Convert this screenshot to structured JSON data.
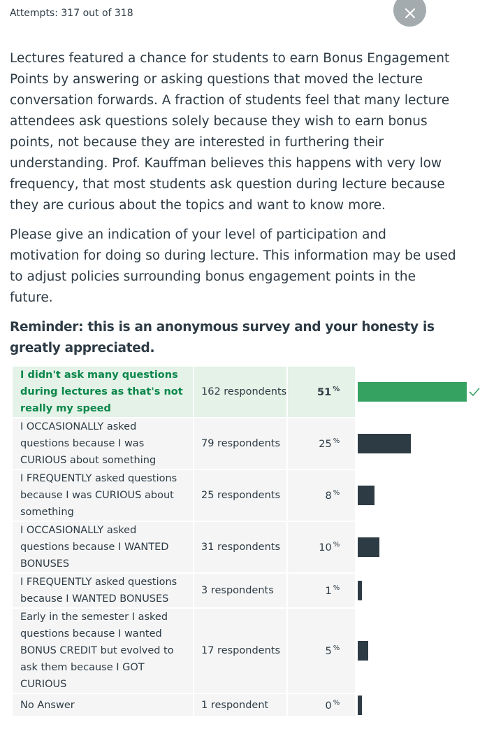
{
  "header": {
    "attempts_text": "Attempts: 317 out of 318",
    "close_icon": "close-icon"
  },
  "question": {
    "paragraph1": "Lectures featured a chance for students to earn Bonus Engagement Points by answering or asking questions that moved the lecture conversation forwards. A fraction of students feel that many lecture attendees ask questions solely because they wish to earn bonus points, not because they are interested in furthering their understanding. Prof. Kauffman believes this happens with very low frequency, that most students ask question during lecture because they are curious about the topics and want to know more.",
    "paragraph2": "Please give an indication of your level of participation and motivation for doing so during lecture. This information may be used to adjust policies surrounding bonus engagement points in the future.",
    "reminder": "Reminder: this is an anonymous survey and your honesty is greatly appreciated."
  },
  "results": {
    "percent_symbol": "%",
    "colors": {
      "correct_bar": "#35a262",
      "bar": "#2d3b45",
      "correct_text": "#0b874b",
      "correct_bg": "#e4f2e7"
    },
    "answers": [
      {
        "label": "I didn't ask many questions during lectures as that's not really my speed",
        "respondents": "162 respondents",
        "percent": "51",
        "fraction": 0.51,
        "correct": true
      },
      {
        "label": "I OCCASIONALLY asked questions because I was CURIOUS about something",
        "respondents": "79 respondents",
        "percent": "25",
        "fraction": 0.25,
        "correct": false
      },
      {
        "label": "I FREQUENTLY asked questions because I was CURIOUS about something",
        "respondents": "25 respondents",
        "percent": "8",
        "fraction": 0.08,
        "correct": false
      },
      {
        "label": "I OCCASIONALLY asked questions because I WANTED BONUSES",
        "respondents": "31 respondents",
        "percent": "10",
        "fraction": 0.1,
        "correct": false
      },
      {
        "label": "I FREQUENTLY asked questions because I WANTED BONUSES",
        "respondents": "3 respondents",
        "percent": "1",
        "fraction": 0.01,
        "correct": false
      },
      {
        "label": "Early in the semester I asked questions because I wanted BONUS CREDIT but evolved to ask them because I GOT CURIOUS",
        "respondents": "17 respondents",
        "percent": "5",
        "fraction": 0.05,
        "correct": false
      },
      {
        "label": "No Answer",
        "respondents": "1 respondent",
        "percent": "0",
        "fraction": 0.0,
        "correct": false
      }
    ]
  }
}
